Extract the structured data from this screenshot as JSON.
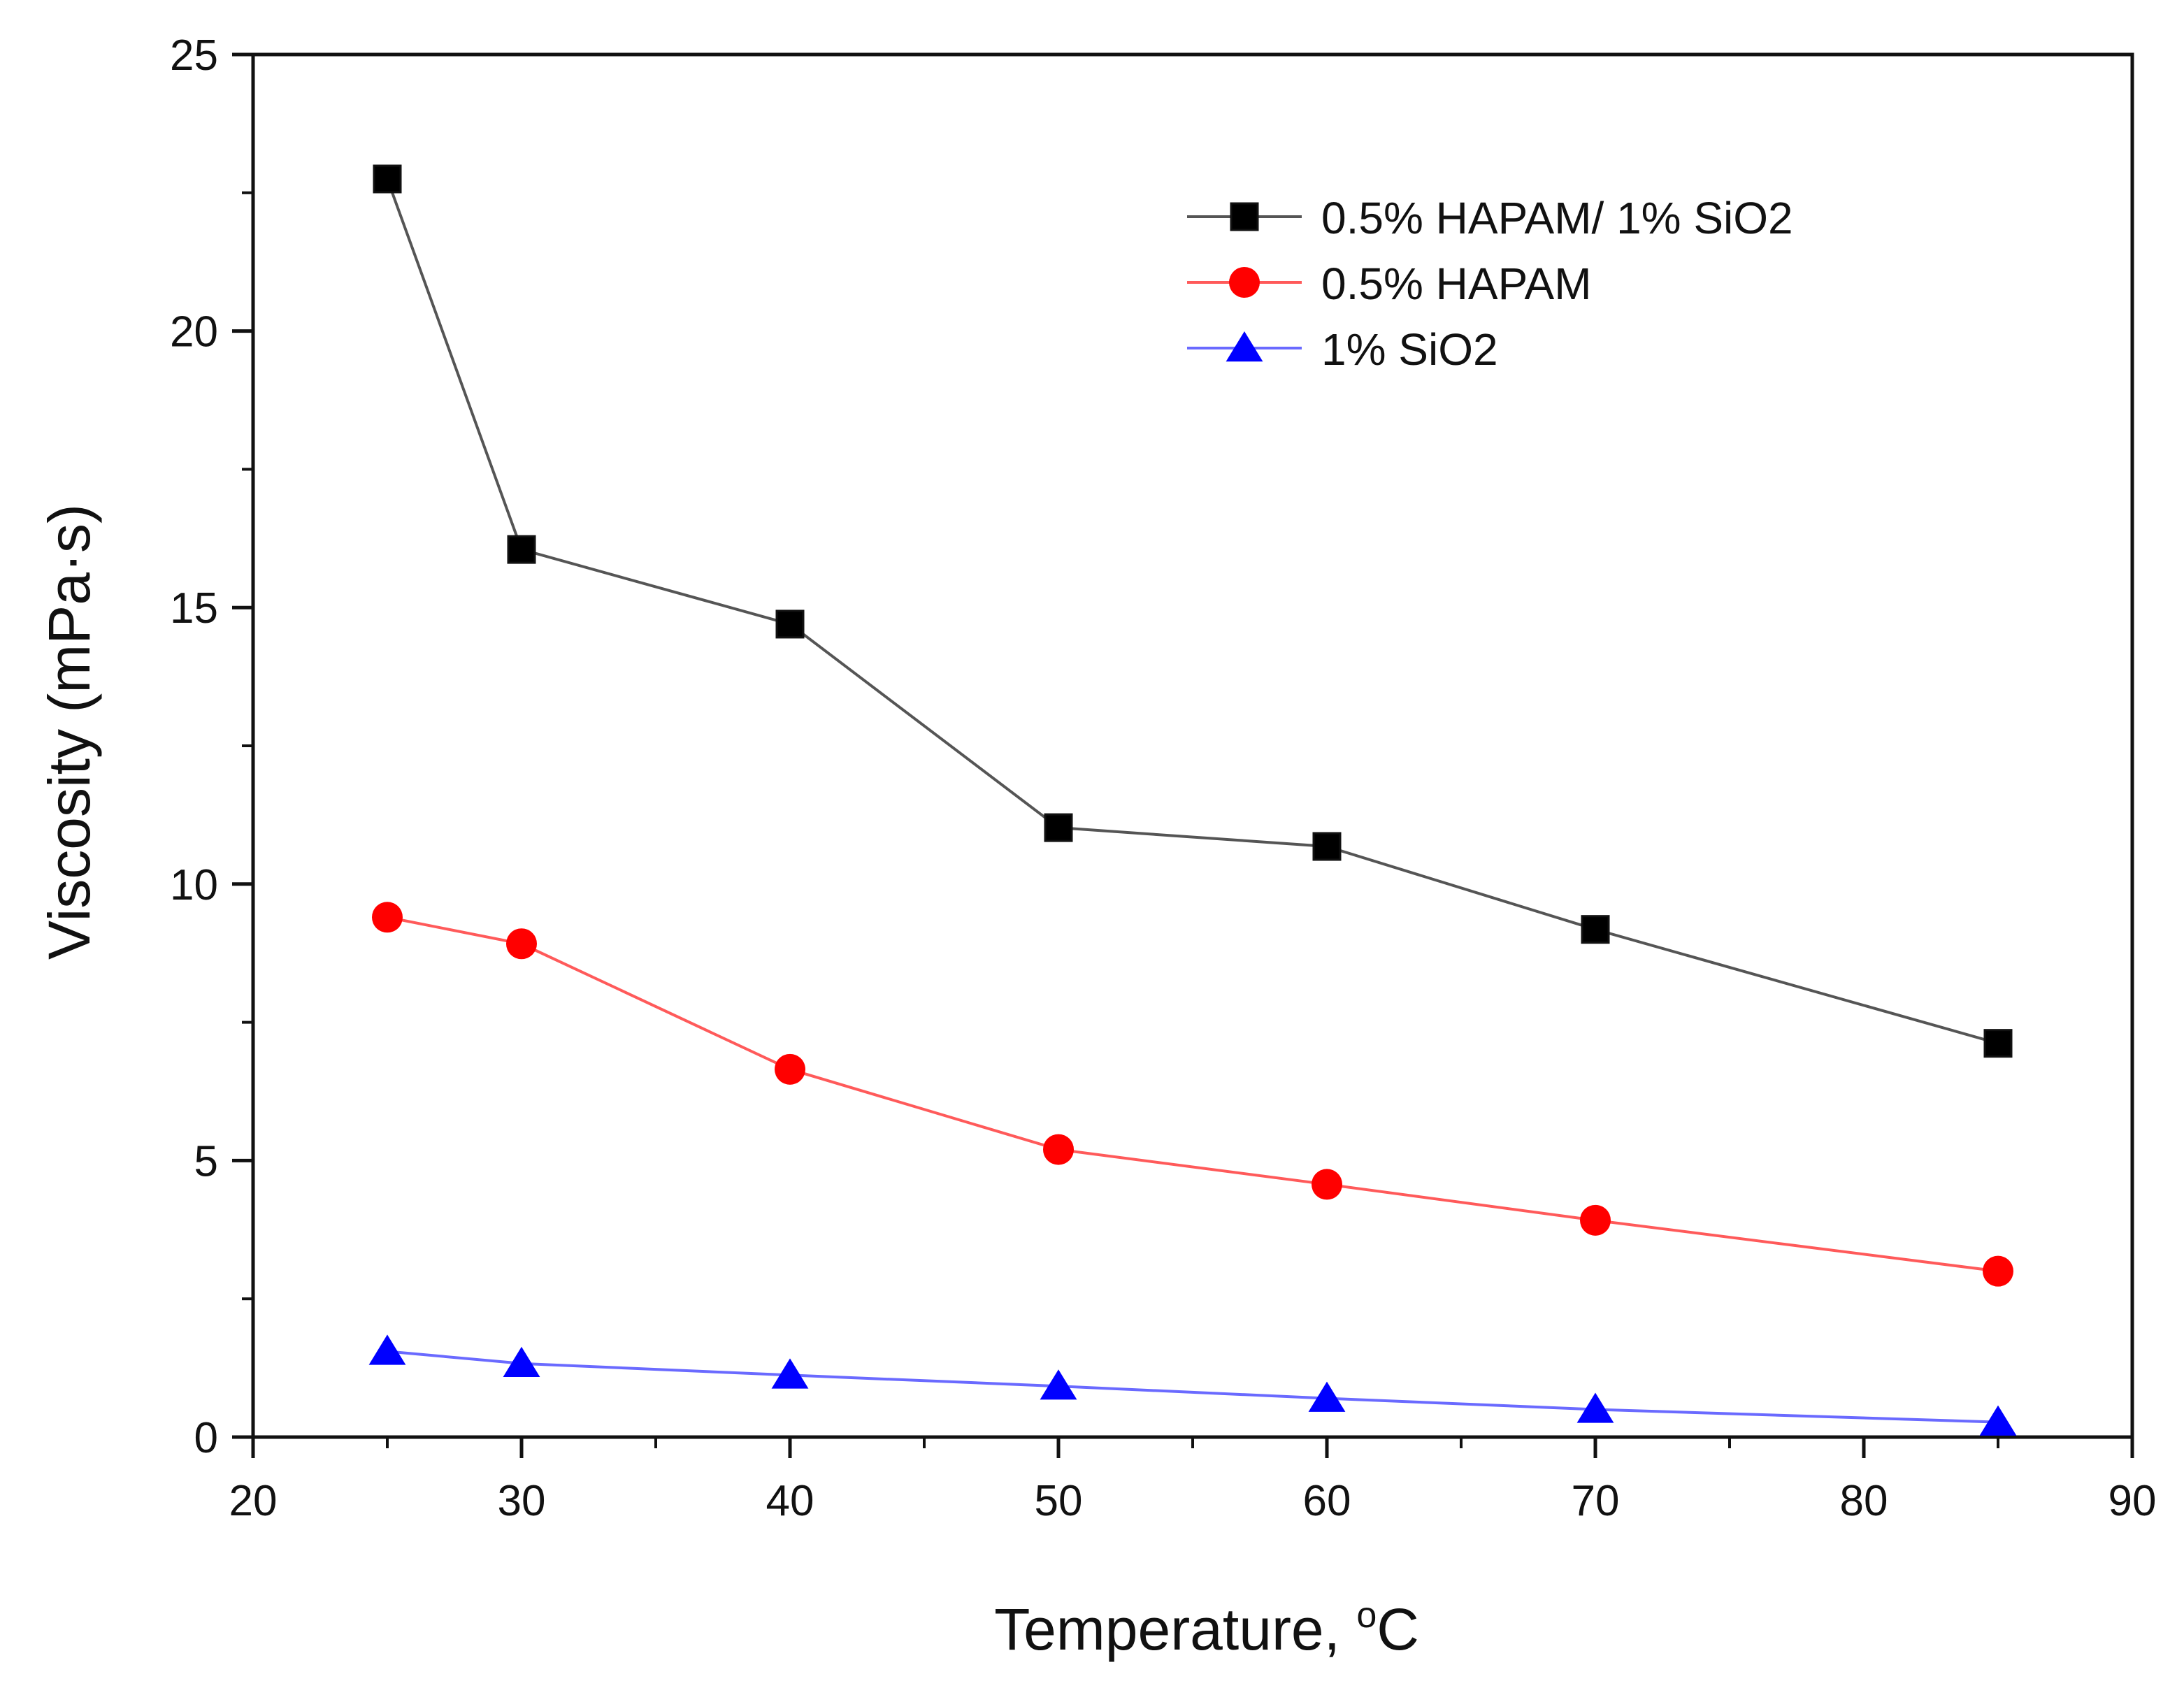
{
  "chart_data": {
    "type": "line",
    "title": "",
    "xlabel": "Temperature, ",
    "xlabel_unit_sup": "o",
    "xlabel_unit": "C",
    "ylabel": "Viscosity (mPa·s)",
    "xlim": [
      20,
      90
    ],
    "ylim": [
      0,
      25
    ],
    "xticks": [
      20,
      30,
      40,
      50,
      60,
      70,
      80,
      90
    ],
    "yticks": [
      0,
      5,
      10,
      15,
      20,
      25
    ],
    "grid": false,
    "legend_position": "top-right",
    "x": [
      25,
      30,
      40,
      50,
      60,
      70,
      85
    ],
    "series": [
      {
        "name": "0.5% HAPAM/ 1% SiO2",
        "marker": "square",
        "line_color": "#555555",
        "marker_color": "#000000",
        "values": [
          22.75,
          16.05,
          14.7,
          11.02,
          10.68,
          9.18,
          7.12
        ]
      },
      {
        "name": "0.5% HAPAM",
        "marker": "circle",
        "line_color": "#ff5a5a",
        "marker_color": "#ff0000",
        "values": [
          9.4,
          8.92,
          6.65,
          5.2,
          4.57,
          3.92,
          3.0
        ]
      },
      {
        "name": "1% SiO2",
        "marker": "triangle",
        "line_color": "#6a6aff",
        "marker_color": "#0000ff",
        "values": [
          1.55,
          1.33,
          1.12,
          0.92,
          0.7,
          0.5,
          0.27
        ]
      }
    ]
  }
}
